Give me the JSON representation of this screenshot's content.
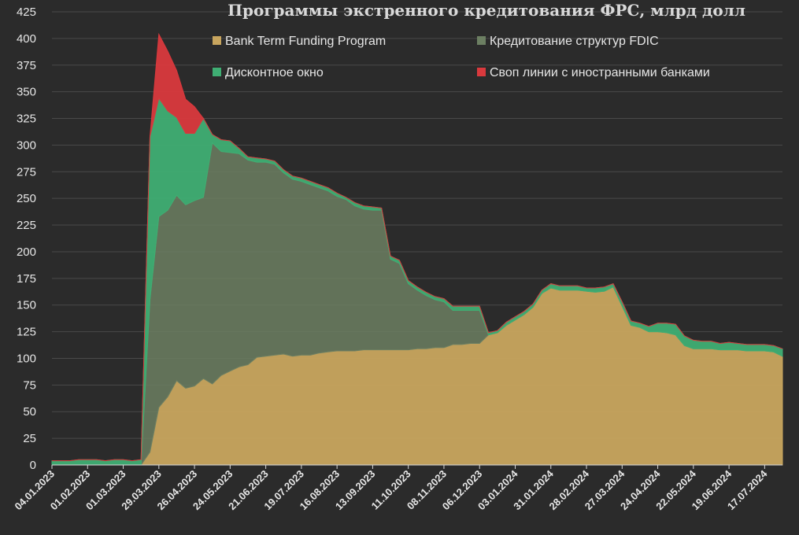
{
  "chart_data": {
    "type": "area",
    "stacked": true,
    "title": "Программы экстренного кредитования ФРС, млрд долл",
    "xlabel": "",
    "ylabel": "",
    "ylim": [
      0,
      425
    ],
    "yticks": [
      0,
      25,
      50,
      75,
      100,
      125,
      150,
      175,
      200,
      225,
      250,
      275,
      300,
      325,
      350,
      375,
      400,
      425
    ],
    "xlim": [
      "2023-01-04",
      "2024-07-31"
    ],
    "xtick_labels": [
      "04.01.2023",
      "01.02.2023",
      "01.03.2023",
      "29.03.2023",
      "26.04.2023",
      "24.05.2023",
      "21.06.2023",
      "19.07.2023",
      "16.08.2023",
      "13.09.2023",
      "11.10.2023",
      "08.11.2023",
      "06.12.2023",
      "03.01.2024",
      "31.01.2024",
      "28.02.2024",
      "27.03.2024",
      "24.04.2024",
      "22.05.2024",
      "19.06.2024",
      "17.07.2024"
    ],
    "grid": true,
    "legend_position": "top",
    "x": [
      "2023-01-04",
      "2023-01-11",
      "2023-01-18",
      "2023-01-25",
      "2023-02-01",
      "2023-02-08",
      "2023-02-15",
      "2023-02-22",
      "2023-03-01",
      "2023-03-08",
      "2023-03-15",
      "2023-03-22",
      "2023-03-29",
      "2023-04-05",
      "2023-04-12",
      "2023-04-19",
      "2023-04-26",
      "2023-05-03",
      "2023-05-10",
      "2023-05-17",
      "2023-05-24",
      "2023-05-31",
      "2023-06-07",
      "2023-06-14",
      "2023-06-21",
      "2023-06-28",
      "2023-07-05",
      "2023-07-12",
      "2023-07-19",
      "2023-07-26",
      "2023-08-02",
      "2023-08-09",
      "2023-08-16",
      "2023-08-23",
      "2023-08-30",
      "2023-09-06",
      "2023-09-13",
      "2023-09-20",
      "2023-09-27",
      "2023-10-04",
      "2023-10-11",
      "2023-10-18",
      "2023-10-25",
      "2023-11-01",
      "2023-11-08",
      "2023-11-15",
      "2023-11-22",
      "2023-11-29",
      "2023-12-06",
      "2023-12-13",
      "2023-12-20",
      "2023-12-27",
      "2024-01-03",
      "2024-01-10",
      "2024-01-17",
      "2024-01-24",
      "2024-01-31",
      "2024-02-07",
      "2024-02-14",
      "2024-02-21",
      "2024-02-28",
      "2024-03-06",
      "2024-03-13",
      "2024-03-20",
      "2024-03-27",
      "2024-04-03",
      "2024-04-10",
      "2024-04-17",
      "2024-04-24",
      "2024-05-01",
      "2024-05-08",
      "2024-05-15",
      "2024-05-22",
      "2024-05-29",
      "2024-06-05",
      "2024-06-12",
      "2024-06-19",
      "2024-06-26",
      "2024-07-03",
      "2024-07-10",
      "2024-07-17",
      "2024-07-24",
      "2024-07-31"
    ],
    "series": [
      {
        "name": "Bank Term Funding Program",
        "color": "#c8a55e",
        "values": [
          0,
          0,
          0,
          0,
          0,
          0,
          0,
          0,
          0,
          0,
          0,
          12,
          54,
          64,
          79,
          72,
          74,
          81,
          76,
          84,
          88,
          92,
          94,
          101,
          102,
          103,
          104,
          102,
          103,
          103,
          105,
          106,
          107,
          107,
          107,
          108,
          108,
          108,
          108,
          108,
          108,
          109,
          109,
          110,
          110,
          113,
          113,
          114,
          114,
          122,
          124,
          131,
          136,
          141,
          148,
          161,
          166,
          164,
          164,
          164,
          163,
          162,
          163,
          167,
          149,
          131,
          129,
          125,
          125,
          124,
          122,
          112,
          109,
          109,
          109,
          108,
          108,
          108,
          107,
          107,
          107,
          106,
          102
        ]
      },
      {
        "name": "Кредитование структур FDIC",
        "color": "#6c7f62",
        "values": [
          0,
          0,
          0,
          0,
          0,
          0,
          0,
          0,
          0,
          0,
          0,
          143,
          179,
          175,
          174,
          172,
          174,
          170,
          226,
          210,
          205,
          200,
          192,
          183,
          182,
          179,
          170,
          166,
          163,
          160,
          155,
          151,
          145,
          142,
          136,
          132,
          131,
          131,
          85,
          81,
          62,
          55,
          50,
          45,
          43,
          32,
          32,
          31,
          31,
          0,
          0,
          0,
          0,
          0,
          0,
          0,
          0,
          0,
          0,
          0,
          0,
          0,
          0,
          0,
          0,
          0,
          0,
          0,
          0,
          0,
          0,
          0,
          0,
          0,
          0,
          0,
          0,
          0,
          0,
          0,
          0,
          0,
          0
        ]
      },
      {
        "name": "Дисконтное окно",
        "color": "#3fae73",
        "values": [
          4,
          4,
          4,
          5,
          5,
          5,
          4,
          5,
          5,
          4,
          5,
          153,
          111,
          93,
          73,
          67,
          63,
          74,
          8,
          11,
          11,
          5,
          3,
          4,
          3,
          3,
          3,
          3,
          3,
          3,
          3,
          3,
          3,
          2,
          3,
          3,
          3,
          2,
          3,
          3,
          3,
          3,
          3,
          3,
          3,
          4,
          4,
          4,
          4,
          2,
          2,
          3,
          3,
          3,
          3,
          3,
          4,
          4,
          4,
          4,
          3,
          4,
          4,
          3,
          4,
          4,
          4,
          5,
          8,
          9,
          10,
          9,
          8,
          7,
          7,
          6,
          7,
          6,
          6,
          6,
          6,
          6,
          7
        ]
      },
      {
        "name": "Своп линии с иностранными банками",
        "color": "#d9393d",
        "values": [
          0,
          0,
          0,
          0,
          0,
          0,
          0,
          0,
          0,
          0,
          0,
          0,
          60,
          56,
          44,
          32,
          25,
          0,
          0,
          0,
          0,
          0,
          0,
          0,
          0,
          0,
          0,
          0,
          0,
          0,
          0,
          0,
          0,
          0,
          0,
          0,
          0,
          0,
          0,
          0,
          0,
          0,
          0,
          0,
          0,
          0,
          0,
          0,
          0,
          0,
          0,
          0,
          0,
          0,
          0,
          0,
          0,
          0,
          0,
          0,
          0,
          0,
          0,
          0,
          0,
          0,
          0,
          0,
          0,
          0,
          0,
          0,
          0,
          0,
          0,
          0,
          0,
          0,
          0,
          0,
          0,
          0,
          0
        ]
      }
    ]
  }
}
